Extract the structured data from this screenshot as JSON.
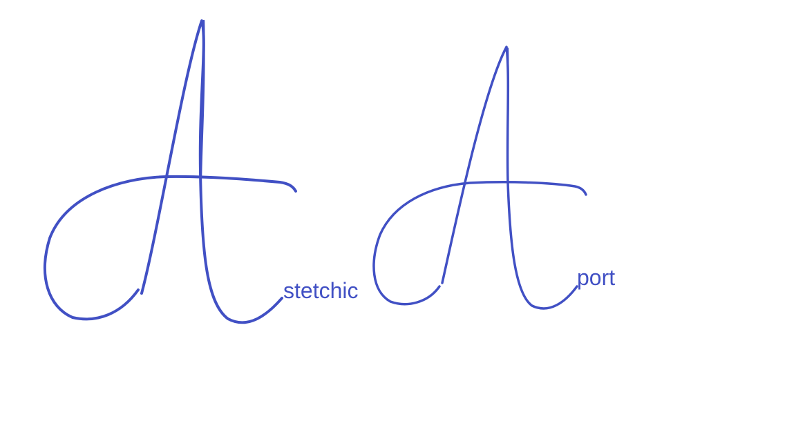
{
  "logo_variants": [
    {
      "initial": "A",
      "suffix": "stetchic"
    },
    {
      "initial": "A",
      "suffix": "port"
    }
  ],
  "colors": {
    "ink": "#4150c4",
    "background": "#ffffff"
  }
}
